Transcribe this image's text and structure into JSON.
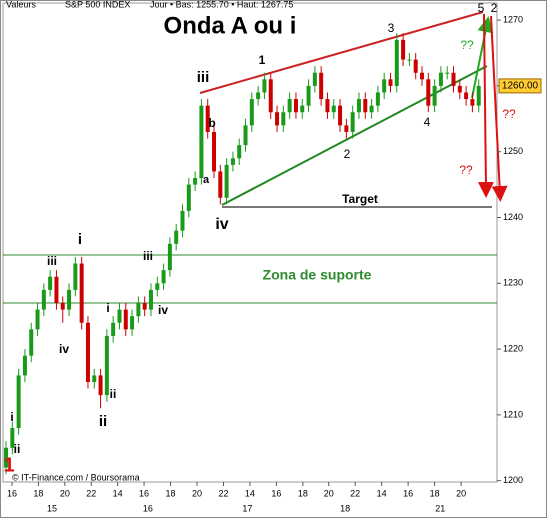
{
  "chart_data": {
    "type": "candlestick",
    "header": [
      "Valeurs",
      "S&P 500 INDEX",
      "Jour • Bas: 1255.70 • Haut: 1267.75"
    ],
    "title": "Onda A ou i",
    "footer": "© IT-Finance.com / Boursorama",
    "ohlc": [
      [
        1202,
        1206,
        1201,
        1205
      ],
      [
        1205,
        1209,
        1204,
        1208
      ],
      [
        1208,
        1217,
        1207,
        1216
      ],
      [
        1216,
        1220,
        1215,
        1219
      ],
      [
        1219,
        1224,
        1218,
        1223
      ],
      [
        1223,
        1227,
        1222,
        1226
      ],
      [
        1226,
        1230,
        1225,
        1229
      ],
      [
        1229,
        1232,
        1228,
        1231
      ],
      [
        1231,
        1232,
        1226,
        1227
      ],
      [
        1227,
        1228,
        1224,
        1226
      ],
      [
        1226,
        1230,
        1225,
        1229
      ],
      [
        1229,
        1234,
        1228,
        1233
      ],
      [
        1233,
        1234,
        1223,
        1224
      ],
      [
        1224,
        1225,
        1214,
        1215
      ],
      [
        1215,
        1217,
        1214,
        1216
      ],
      [
        1216,
        1217,
        1211,
        1213
      ],
      [
        1213,
        1223,
        1212,
        1222
      ],
      [
        1222,
        1225,
        1221,
        1224
      ],
      [
        1224,
        1227,
        1223,
        1226
      ],
      [
        1226,
        1227,
        1222,
        1223
      ],
      [
        1223,
        1226,
        1222,
        1225
      ],
      [
        1225,
        1228,
        1224,
        1227
      ],
      [
        1227,
        1228,
        1225,
        1226
      ],
      [
        1226,
        1230,
        1225,
        1229
      ],
      [
        1229,
        1231,
        1228,
        1230
      ],
      [
        1230,
        1233,
        1229,
        1232
      ],
      [
        1232,
        1237,
        1231,
        1236
      ],
      [
        1236,
        1239,
        1235,
        1238
      ],
      [
        1238,
        1242,
        1237,
        1241
      ],
      [
        1241,
        1246,
        1240,
        1245
      ],
      [
        1245,
        1247,
        1244,
        1246
      ],
      [
        1246,
        1258,
        1245,
        1257
      ],
      [
        1257,
        1258,
        1252,
        1253
      ],
      [
        1253,
        1254,
        1246,
        1247
      ],
      [
        1247,
        1248,
        1242,
        1243
      ],
      [
        1243,
        1249,
        1242,
        1248
      ],
      [
        1248,
        1250,
        1247,
        1249
      ],
      [
        1249,
        1252,
        1248,
        1251
      ],
      [
        1251,
        1255,
        1250,
        1254
      ],
      [
        1254,
        1259,
        1253,
        1258
      ],
      [
        1258,
        1260,
        1257,
        1259
      ],
      [
        1259,
        1262,
        1258,
        1261
      ],
      [
        1261,
        1262,
        1255,
        1256
      ],
      [
        1256,
        1257,
        1253,
        1254
      ],
      [
        1254,
        1257,
        1253,
        1256
      ],
      [
        1256,
        1259,
        1255,
        1258
      ],
      [
        1258,
        1259,
        1255,
        1256
      ],
      [
        1256,
        1258,
        1255,
        1257
      ],
      [
        1257,
        1261,
        1256,
        1260
      ],
      [
        1260,
        1263,
        1259,
        1262
      ],
      [
        1262,
        1263,
        1257,
        1258
      ],
      [
        1258,
        1259,
        1255,
        1256
      ],
      [
        1256,
        1258,
        1255,
        1257
      ],
      [
        1257,
        1258,
        1253,
        1254
      ],
      [
        1254,
        1255,
        1252,
        1253
      ],
      [
        1253,
        1257,
        1252,
        1256
      ],
      [
        1256,
        1259,
        1255,
        1258
      ],
      [
        1258,
        1259,
        1255,
        1256
      ],
      [
        1256,
        1258,
        1255,
        1257
      ],
      [
        1257,
        1260,
        1256,
        1259
      ],
      [
        1259,
        1262,
        1258,
        1261
      ],
      [
        1261,
        1262,
        1259,
        1260
      ],
      [
        1260,
        1268,
        1259,
        1267
      ],
      [
        1267,
        1268,
        1263,
        1264
      ],
      [
        1264,
        1265,
        1263,
        1264
      ],
      [
        1264,
        1265,
        1261,
        1262
      ],
      [
        1262,
        1263,
        1260,
        1261
      ],
      [
        1261,
        1262,
        1256,
        1257
      ],
      [
        1257,
        1261,
        1256,
        1260
      ],
      [
        1260,
        1263,
        1259,
        1262
      ],
      [
        1262,
        1263,
        1261,
        1262
      ],
      [
        1262,
        1263,
        1259,
        1260
      ],
      [
        1260,
        1261,
        1258,
        1259
      ],
      [
        1259,
        1260,
        1257,
        1258
      ],
      [
        1258,
        1259,
        1256,
        1257
      ],
      [
        1257,
        1261,
        1256,
        1260
      ]
    ],
    "up_color": "#1a9a1a",
    "down_color": "#cc0000",
    "ylim": [
      1199.8,
      1272.6
    ],
    "yticks": [
      1200,
      1210,
      1220,
      1230,
      1240,
      1250,
      1260,
      1270
    ],
    "xlim": [
      -0.48,
      77.9
    ],
    "xticks": [
      {
        "value": 0.95,
        "label": "16"
      },
      {
        "value": 5.14,
        "label": "18"
      },
      {
        "value": 9.33,
        "label": "20"
      },
      {
        "value": 13.52,
        "label": "22"
      },
      {
        "value": 17.71,
        "label": "14"
      },
      {
        "value": 21.9,
        "label": "16"
      },
      {
        "value": 26.1,
        "label": "18"
      },
      {
        "value": 30.3,
        "label": "20"
      },
      {
        "value": 34.5,
        "label": "22"
      },
      {
        "value": 38.7,
        "label": "14"
      },
      {
        "value": 42.9,
        "label": "16"
      },
      {
        "value": 47.1,
        "label": "18"
      },
      {
        "value": 51.2,
        "label": "20"
      },
      {
        "value": 55.4,
        "label": "22"
      },
      {
        "value": 59.6,
        "label": "14"
      },
      {
        "value": 63.8,
        "label": "16"
      },
      {
        "value": 68.0,
        "label": "18"
      },
      {
        "value": 72.2,
        "label": "20"
      }
    ],
    "date_ticks": [
      {
        "value": 7.3,
        "label": "15"
      },
      {
        "value": 22.5,
        "label": "16"
      },
      {
        "value": 38.3,
        "label": "17"
      },
      {
        "value": 53.8,
        "label": "18"
      },
      {
        "value": 68.9,
        "label": "21"
      }
    ],
    "last_price": {
      "value": 1260,
      "label": "1260.00"
    },
    "annotations": [
      "iii",
      "1",
      "3",
      "5",
      "2",
      "b",
      "a",
      "iv",
      "2",
      "4",
      "??",
      "??",
      "??",
      "Target",
      "Zona de suporte",
      "i",
      "iii",
      "iv",
      "iii",
      "iv",
      "i",
      "ii",
      "ii",
      "i",
      "ii",
      "1"
    ]
  }
}
